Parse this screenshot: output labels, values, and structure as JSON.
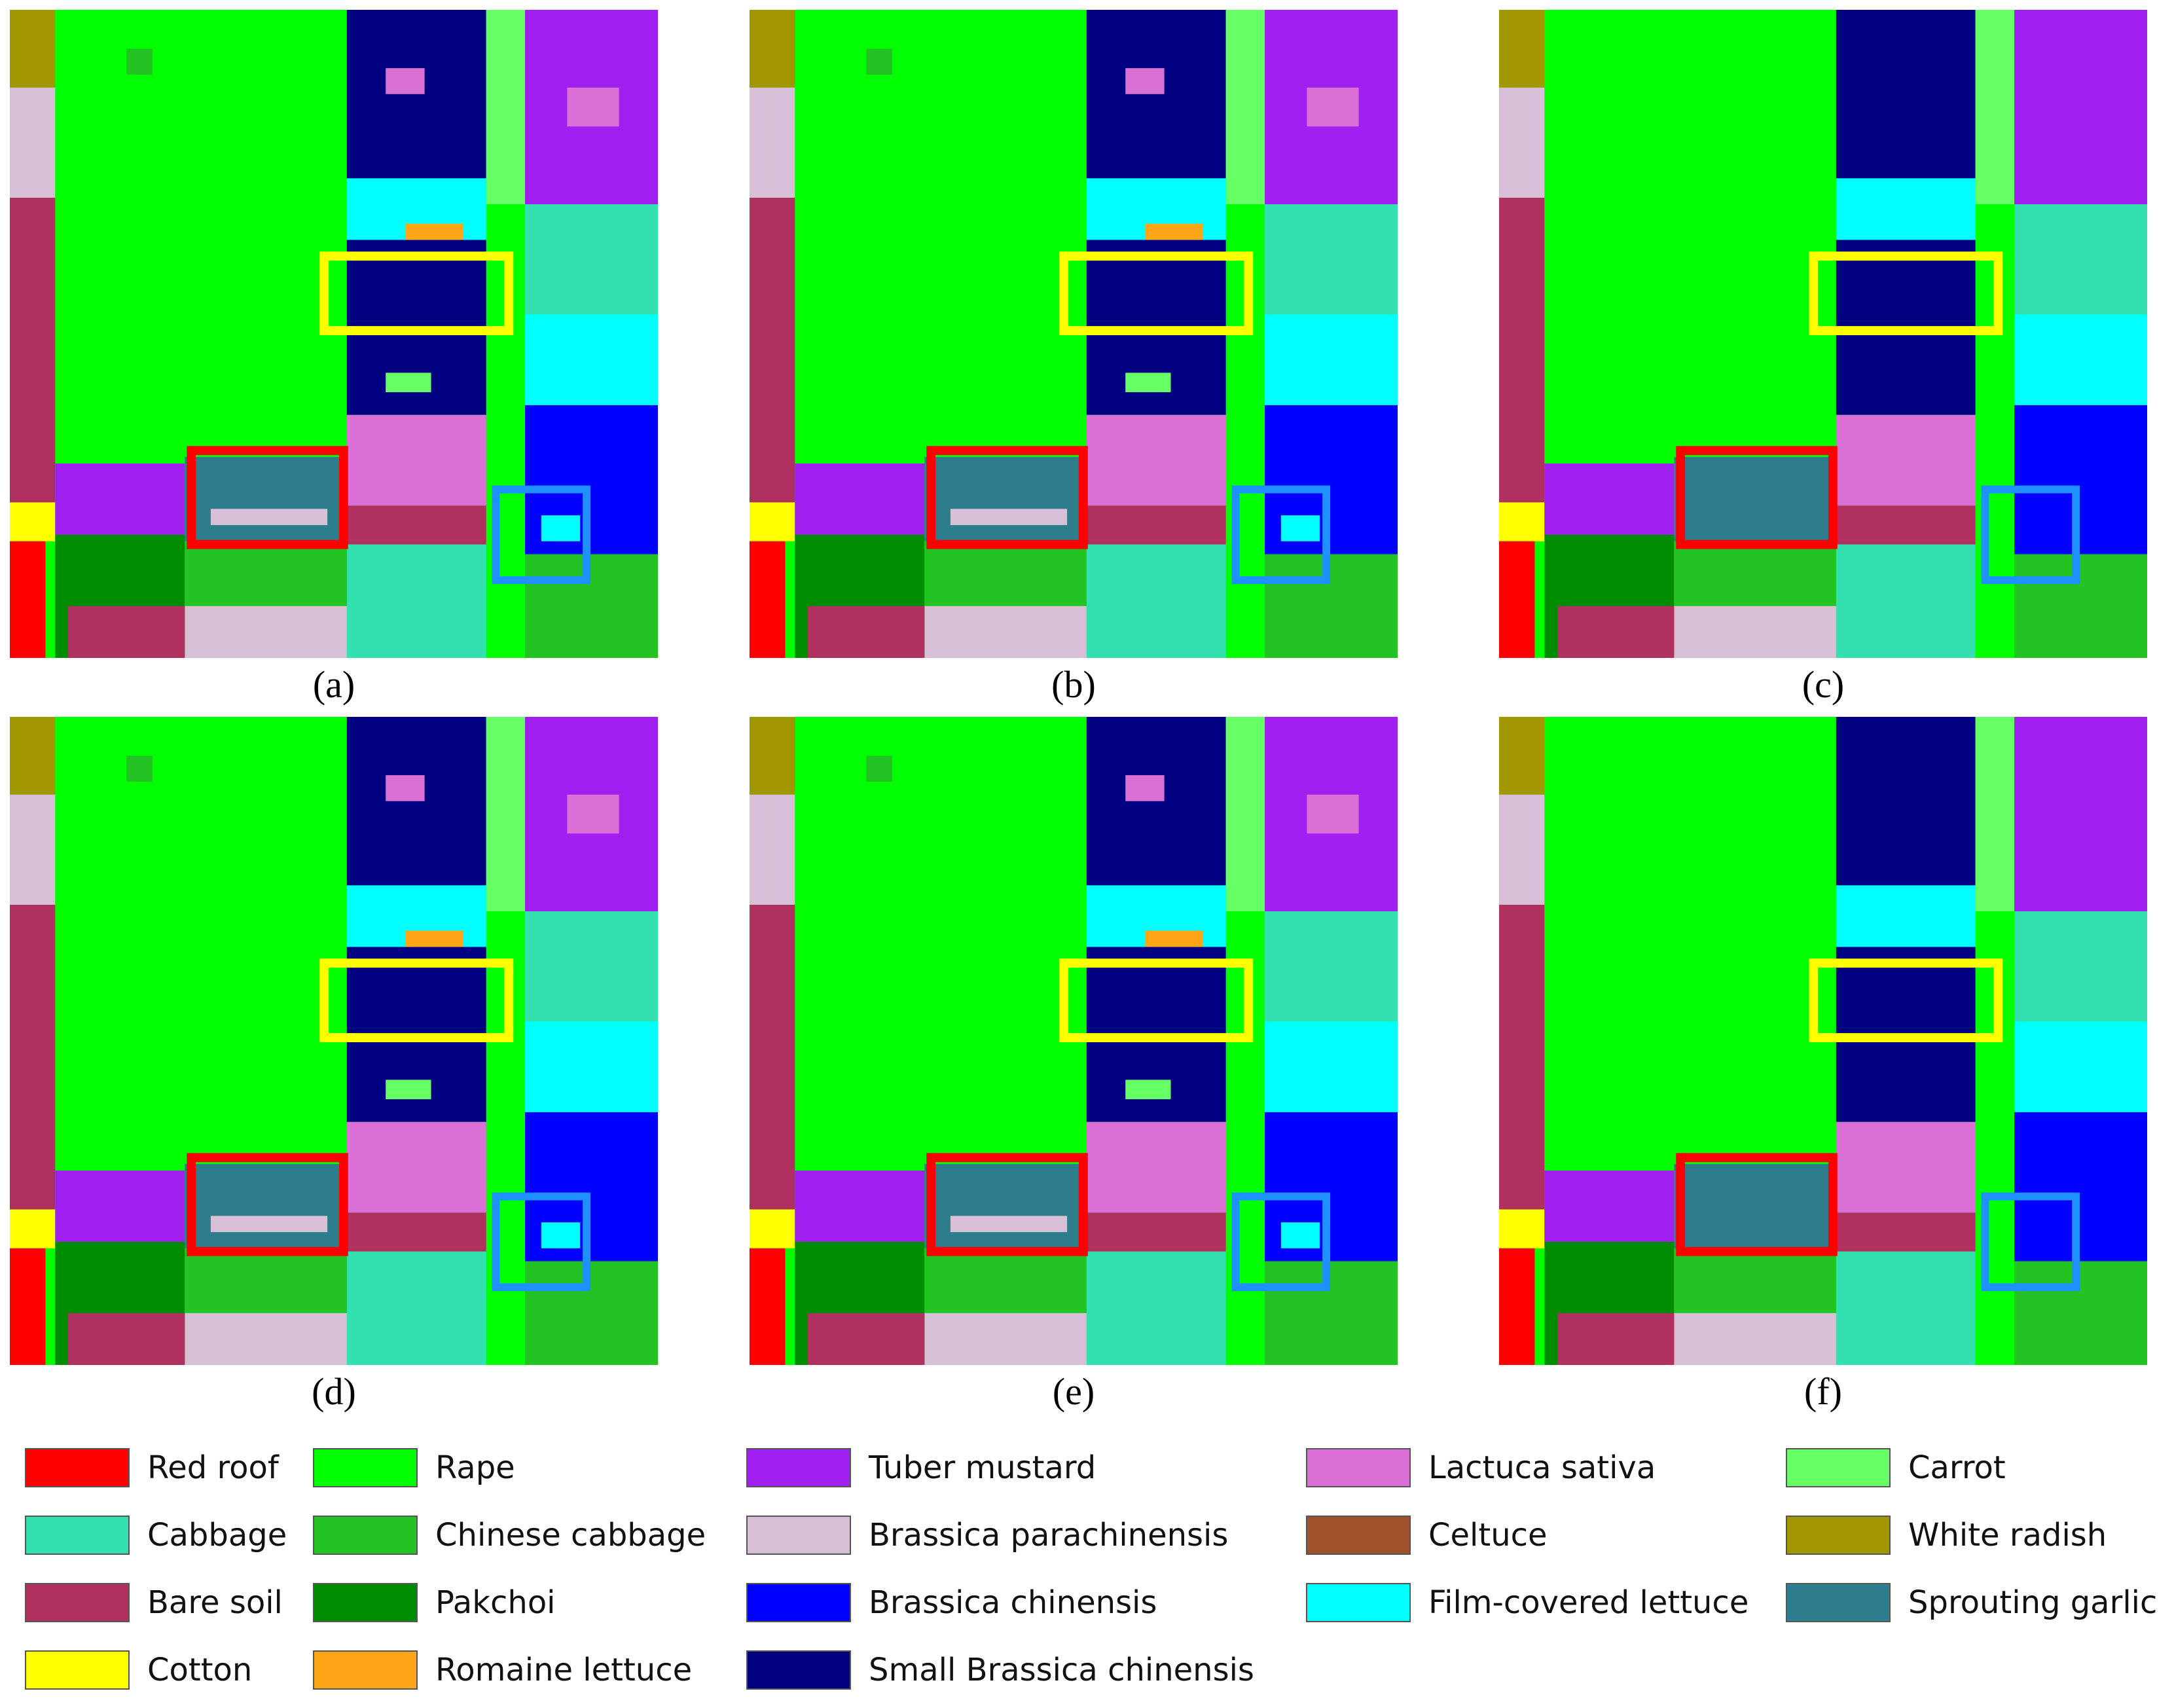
{
  "panels": [
    {
      "label": "(a)"
    },
    {
      "label": "(b)"
    },
    {
      "label": "(c)"
    },
    {
      "label": "(d)"
    },
    {
      "label": "(e)"
    },
    {
      "label": "(f)"
    }
  ],
  "legend": [
    {
      "name": "Red roof",
      "color": "#ff0000"
    },
    {
      "name": "Cabbage",
      "color": "#33e0b0"
    },
    {
      "name": "Bare soil",
      "color": "#b03060"
    },
    {
      "name": "Cotton",
      "color": "#ffff00"
    },
    {
      "name": "Rape",
      "color": "#00ff00"
    },
    {
      "name": "Chinese cabbage",
      "color": "#22c322"
    },
    {
      "name": "Pakchoi",
      "color": "#008c00"
    },
    {
      "name": "Romaine lettuce",
      "color": "#ffa518"
    },
    {
      "name": "Tuber mustard",
      "color": "#a020f0"
    },
    {
      "name": "Brassica parachinensis",
      "color": "#d8bfd8"
    },
    {
      "name": "Brassica chinensis",
      "color": "#0000ff"
    },
    {
      "name": "Small Brassica chinensis",
      "color": "#000080"
    },
    {
      "name": "Lactuca sativa",
      "color": "#da70d6"
    },
    {
      "name": "Celtuce",
      "color": "#a0522d"
    },
    {
      "name": "Film-covered lettuce",
      "color": "#00ffff"
    },
    {
      "name": "Carrot",
      "color": "#66ff66"
    },
    {
      "name": "White radish",
      "color": "#a09600"
    },
    {
      "name": "Sprouting garlic",
      "color": "#2e7d8c"
    }
  ],
  "highlight_colors": {
    "yellow": "#ffff00",
    "red": "#ff0000",
    "blue": "#1e90ff"
  }
}
